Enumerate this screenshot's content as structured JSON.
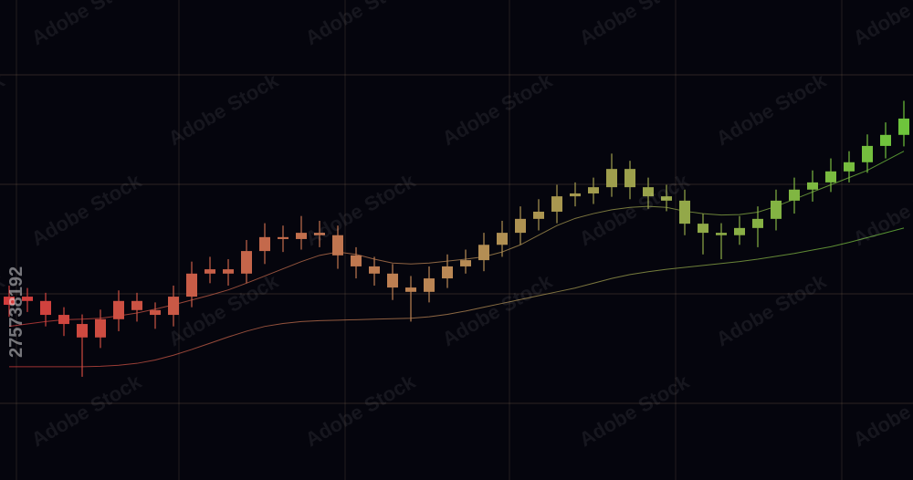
{
  "chart_data": {
    "type": "candlestick",
    "watermark": "Adobe Stock",
    "image_id": "275738192",
    "ylim": [
      0,
      100
    ],
    "grid": true,
    "colors": [
      "#d23c3c",
      "#b98a56",
      "#6ec43c"
    ],
    "open": [
      36.5,
      38.2,
      37.3,
      34.4,
      32.5,
      29.7,
      33.5,
      37.3,
      35.4,
      34.4,
      38.2,
      43.0,
      43.9,
      43.0,
      47.7,
      50.6,
      50.2,
      51.5,
      51.0,
      46.8,
      44.5,
      43.0,
      40.1,
      39.2,
      42.0,
      44.5,
      45.8,
      49.0,
      51.5,
      54.4,
      55.9,
      59.1,
      59.7,
      61.0,
      64.8,
      61.0,
      59.1,
      58.2,
      53.4,
      51.5,
      51.0,
      52.5,
      54.4,
      58.2,
      60.5,
      62.0,
      64.3,
      66.2,
      69.6,
      71.9
    ],
    "high": [
      40.5,
      40.0,
      39.0,
      36.0,
      34.5,
      35.5,
      39.5,
      39.0,
      37.0,
      40.5,
      45.5,
      46.5,
      46.0,
      50.0,
      53.5,
      53.0,
      55.0,
      54.0,
      53.0,
      48.5,
      46.5,
      45.0,
      42.5,
      44.5,
      47.0,
      48.0,
      51.5,
      54.0,
      57.0,
      58.5,
      61.5,
      62.0,
      63.0,
      68.0,
      66.5,
      63.0,
      61.5,
      60.5,
      55.5,
      53.5,
      55.0,
      57.0,
      60.5,
      63.0,
      64.5,
      67.0,
      68.5,
      72.0,
      74.5,
      79.0
    ],
    "low": [
      34.0,
      35.0,
      32.0,
      30.0,
      21.5,
      27.5,
      31.0,
      33.0,
      31.5,
      32.0,
      36.0,
      41.0,
      40.5,
      41.0,
      45.0,
      47.5,
      48.0,
      48.5,
      44.0,
      42.0,
      40.5,
      37.5,
      33.0,
      37.0,
      40.0,
      43.0,
      43.5,
      46.5,
      49.0,
      52.0,
      53.5,
      57.0,
      57.5,
      59.0,
      58.5,
      56.5,
      56.0,
      51.0,
      47.0,
      46.0,
      49.0,
      48.5,
      52.0,
      55.5,
      58.0,
      60.0,
      62.0,
      64.0,
      67.0,
      69.5
    ],
    "close": [
      38.2,
      37.3,
      34.4,
      32.5,
      29.7,
      33.5,
      37.3,
      35.4,
      34.4,
      38.2,
      43.0,
      43.9,
      43.0,
      47.7,
      50.6,
      50.2,
      51.5,
      51.0,
      46.8,
      44.5,
      43.0,
      40.1,
      39.2,
      42.0,
      44.5,
      45.8,
      49.0,
      51.5,
      54.4,
      55.9,
      59.1,
      59.7,
      61.0,
      64.8,
      61.0,
      59.1,
      58.2,
      53.4,
      51.5,
      51.0,
      52.5,
      54.4,
      58.2,
      60.5,
      62.0,
      64.3,
      66.2,
      69.6,
      71.9,
      75.3
    ],
    "lines": [
      {
        "values": [
          32.0,
          32.5,
          33.0,
          33.4,
          33.5,
          33.7,
          34.2,
          34.8,
          35.6,
          36.5,
          37.5,
          38.5,
          39.6,
          41.0,
          42.5,
          44.0,
          45.5,
          46.8,
          47.5,
          47.0,
          46.0,
          45.2,
          45.0,
          45.2,
          45.6,
          46.0,
          46.5,
          47.5,
          49.0,
          51.0,
          53.0,
          54.5,
          55.5,
          56.3,
          56.8,
          57.0,
          56.8,
          56.0,
          55.5,
          55.2,
          55.3,
          55.8,
          57.0,
          58.5,
          60.0,
          61.5,
          63.0,
          64.5,
          66.5,
          68.5
        ]
      },
      {
        "values": [
          23.6,
          23.6,
          23.6,
          23.6,
          23.6,
          23.7,
          23.9,
          24.3,
          25.0,
          26.0,
          27.2,
          28.5,
          29.8,
          31.0,
          32.0,
          32.6,
          33.0,
          33.2,
          33.3,
          33.4,
          33.5,
          33.6,
          33.7,
          34.0,
          34.5,
          35.2,
          36.0,
          36.8,
          37.6,
          38.4,
          39.2,
          40.0,
          41.0,
          42.0,
          42.8,
          43.4,
          43.9,
          44.3,
          44.7,
          45.1,
          45.5,
          46.0,
          46.6,
          47.2,
          47.9,
          48.6,
          49.5,
          50.5,
          51.5,
          52.5
        ]
      }
    ]
  }
}
